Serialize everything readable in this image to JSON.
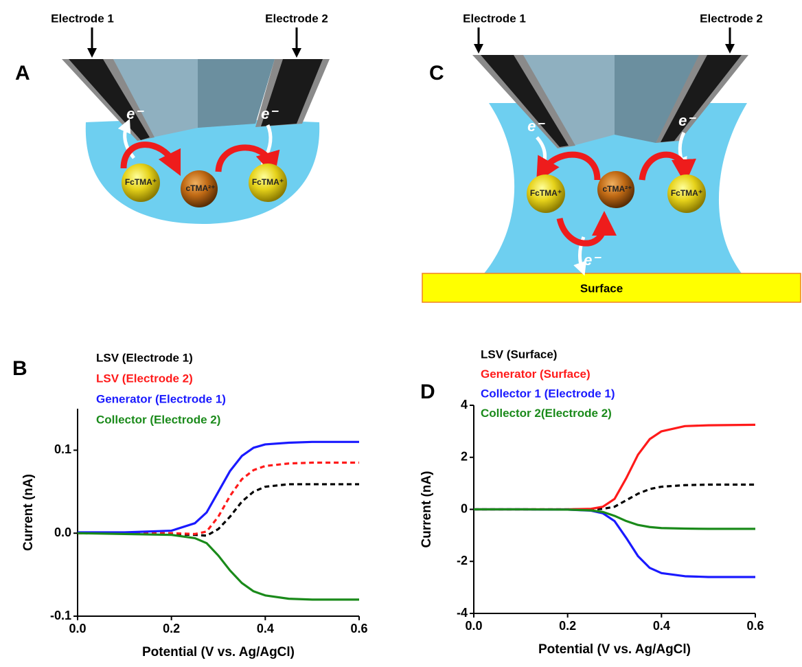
{
  "diagrams": [
    {
      "label": "A",
      "electrodes": [
        "Electrode 1",
        "Electrode 2"
      ],
      "electrons": [
        "e⁻",
        "e⁻"
      ],
      "molecules": [
        "FcTMA⁺",
        "cTMA²⁺",
        "FcTMA⁺"
      ]
    },
    {
      "label": "C",
      "electrodes": [
        "Electrode 1",
        "Electrode 2"
      ],
      "electrons": [
        "e⁻",
        "e⁻",
        "e⁻"
      ],
      "molecules": [
        "FcTMA⁺",
        "cTMA²⁺",
        "FcTMA⁺"
      ],
      "surface": "Surface"
    }
  ],
  "chart_data": [
    {
      "type": "line",
      "panel_label": "B",
      "xlabel": "Potential (V vs. Ag/AgCl)",
      "ylabel": "Current (nA)",
      "x": [
        0,
        0.1,
        0.2,
        0.25,
        0.275,
        0.3,
        0.325,
        0.35,
        0.375,
        0.4,
        0.45,
        0.5,
        0.6
      ],
      "xlim": [
        0,
        0.6
      ],
      "xticks": [
        {
          "value": 0,
          "label": "0.0"
        },
        0.2,
        0.4,
        0.6
      ],
      "ylim": [
        -0.1,
        0.15
      ],
      "yticks": [
        -0.1,
        {
          "value": 0,
          "label": "0.0"
        },
        0.1
      ],
      "series": [
        {
          "name": "LSV (Electrode 1)",
          "color": "#000000",
          "style": "dashed",
          "values": [
            0,
            0,
            -0.001,
            -0.002,
            -0.003,
            0.005,
            0.02,
            0.038,
            0.05,
            0.056,
            0.059,
            0.059,
            0.059
          ]
        },
        {
          "name": "LSV (Electrode 2)",
          "color": "#ff1a1a",
          "style": "dashed",
          "values": [
            0,
            0,
            0,
            -0.001,
            0.002,
            0.02,
            0.045,
            0.065,
            0.076,
            0.081,
            0.084,
            0.085,
            0.085
          ]
        },
        {
          "name": "Generator (Electrode 1)",
          "color": "#1a1aff",
          "style": "solid",
          "values": [
            0.001,
            0.001,
            0.003,
            0.012,
            0.025,
            0.05,
            0.075,
            0.093,
            0.103,
            0.107,
            0.109,
            0.11,
            0.11
          ]
        },
        {
          "name": "Collector (Electrode 2)",
          "color": "#1a8a1a",
          "style": "solid",
          "values": [
            0,
            -0.001,
            -0.002,
            -0.006,
            -0.012,
            -0.027,
            -0.045,
            -0.06,
            -0.07,
            -0.075,
            -0.079,
            -0.08,
            -0.08
          ]
        }
      ]
    },
    {
      "type": "line",
      "panel_label": "D",
      "xlabel": "Potential (V vs. Ag/AgCl)",
      "ylabel": "Current (nA)",
      "x": [
        0,
        0.1,
        0.2,
        0.25,
        0.275,
        0.3,
        0.325,
        0.35,
        0.375,
        0.4,
        0.45,
        0.5,
        0.6
      ],
      "xlim": [
        0,
        0.6
      ],
      "xticks": [
        {
          "value": 0,
          "label": "0.0"
        },
        0.2,
        0.4,
        0.6
      ],
      "ylim": [
        -4,
        4
      ],
      "yticks": [
        -4,
        -2,
        0,
        2,
        4
      ],
      "series": [
        {
          "name": "LSV (Surface)",
          "color": "#000000",
          "style": "dashed",
          "values": [
            0,
            0,
            0,
            0,
            0.02,
            0.1,
            0.35,
            0.6,
            0.78,
            0.87,
            0.93,
            0.95,
            0.95
          ]
        },
        {
          "name": "Generator (Surface)",
          "color": "#ff1a1a",
          "style": "solid",
          "values": [
            0,
            0,
            0,
            0.02,
            0.1,
            0.4,
            1.2,
            2.1,
            2.7,
            3.0,
            3.2,
            3.23,
            3.25
          ]
        },
        {
          "name": "Collector 1 (Electrode 1)",
          "color": "#1a1aff",
          "style": "solid",
          "values": [
            0,
            0,
            -0.01,
            -0.05,
            -0.15,
            -0.45,
            -1.1,
            -1.8,
            -2.25,
            -2.45,
            -2.57,
            -2.6,
            -2.6
          ]
        },
        {
          "name": "Collector 2(Electrode 2)",
          "color": "#1a8a1a",
          "style": "solid",
          "values": [
            0,
            0,
            -0.01,
            -0.04,
            -0.1,
            -0.25,
            -0.45,
            -0.6,
            -0.68,
            -0.72,
            -0.74,
            -0.75,
            -0.75
          ]
        }
      ]
    }
  ]
}
